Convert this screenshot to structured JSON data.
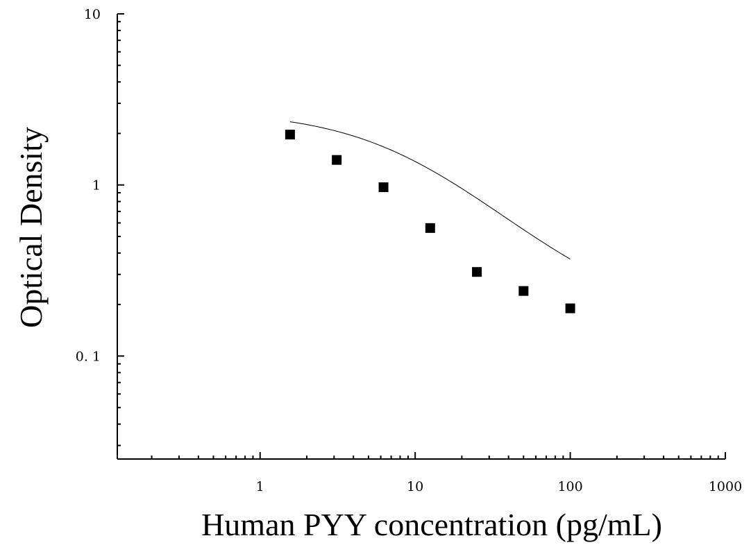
{
  "chart_data": {
    "type": "scatter",
    "xlabel": "Human PYY concentration (pg/mL)",
    "ylabel": "Optical Density",
    "xscale": "log",
    "yscale": "log",
    "xlim": [
      0.12,
      1000
    ],
    "ylim": [
      0.025,
      10
    ],
    "x_ticks": [
      {
        "value": 1,
        "label": "1"
      },
      {
        "value": 10,
        "label": "10"
      },
      {
        "value": 100,
        "label": "100"
      },
      {
        "value": 1000,
        "label": "1000"
      }
    ],
    "y_ticks": [
      {
        "value": 0.1,
        "label": "0. 1"
      },
      {
        "value": 1,
        "label": "1"
      },
      {
        "value": 10,
        "label": "10"
      }
    ],
    "grid": false,
    "legend": "none",
    "marker": "square",
    "series": [
      {
        "x": [
          1.56,
          3.12,
          6.25,
          12.5,
          25,
          50,
          100
        ],
        "y": [
          1.97,
          1.4,
          0.97,
          0.56,
          0.31,
          0.24,
          0.19
        ]
      }
    ],
    "fit_curve": {
      "type": "4PL",
      "top": 2.72,
      "bottom": 0.157,
      "ec50": 9.0,
      "hill": 1.0,
      "x_range": [
        1.56,
        100
      ]
    }
  }
}
